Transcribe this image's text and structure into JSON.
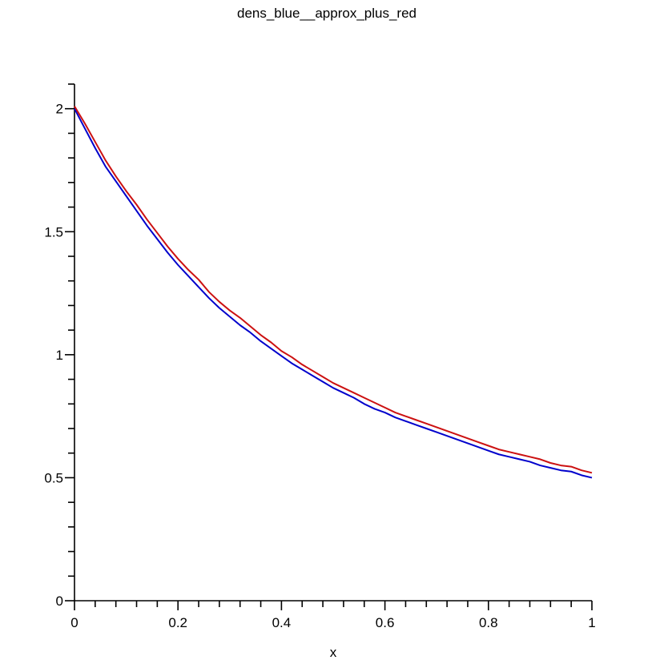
{
  "chart_data": {
    "type": "line",
    "title": "dens_blue__approx_plus_red",
    "xlabel": "x",
    "ylabel": "",
    "xlim": [
      0,
      1
    ],
    "ylim": [
      0,
      2.1
    ],
    "grid": false,
    "legend": "none",
    "x_ticks": [
      {
        "value": 0,
        "label": "0"
      },
      {
        "value": 0.2,
        "label": "0.2"
      },
      {
        "value": 0.4,
        "label": "0.4"
      },
      {
        "value": 0.6,
        "label": "0.6"
      },
      {
        "value": 0.8,
        "label": "0.8"
      },
      {
        "value": 1,
        "label": "1"
      }
    ],
    "x_minor_step": 0.04,
    "y_ticks": [
      {
        "value": 0,
        "label": "0"
      },
      {
        "value": 0.5,
        "label": "0.5"
      },
      {
        "value": 1,
        "label": "1"
      },
      {
        "value": 1.5,
        "label": "1.5"
      },
      {
        "value": 2,
        "label": "2"
      }
    ],
    "y_minor_step": 0.1,
    "x": [
      0,
      0.02,
      0.04,
      0.06,
      0.08,
      0.1,
      0.12,
      0.14,
      0.16,
      0.18,
      0.2,
      0.22,
      0.24,
      0.26,
      0.28,
      0.3,
      0.32,
      0.34,
      0.36,
      0.38,
      0.4,
      0.42,
      0.44,
      0.46,
      0.48,
      0.5,
      0.52,
      0.54,
      0.56,
      0.58,
      0.6,
      0.62,
      0.64,
      0.66,
      0.68,
      0.7,
      0.72,
      0.74,
      0.76,
      0.78,
      0.8,
      0.82,
      0.84,
      0.86,
      0.88,
      0.9,
      0.92,
      0.94,
      0.96,
      0.98,
      1
    ],
    "series": [
      {
        "color": "#0000cc",
        "values": [
          2.0,
          1.92,
          1.84,
          1.765,
          1.705,
          1.645,
          1.585,
          1.525,
          1.47,
          1.415,
          1.365,
          1.32,
          1.275,
          1.23,
          1.19,
          1.155,
          1.12,
          1.09,
          1.055,
          1.025,
          0.995,
          0.965,
          0.94,
          0.915,
          0.89,
          0.865,
          0.845,
          0.825,
          0.8,
          0.78,
          0.765,
          0.745,
          0.73,
          0.715,
          0.7,
          0.685,
          0.67,
          0.655,
          0.64,
          0.625,
          0.61,
          0.595,
          0.585,
          0.575,
          0.565,
          0.55,
          0.54,
          0.53,
          0.525,
          0.51,
          0.5
        ]
      },
      {
        "color": "#cc1111",
        "values": [
          2.01,
          1.94,
          1.865,
          1.79,
          1.725,
          1.665,
          1.61,
          1.55,
          1.495,
          1.44,
          1.39,
          1.345,
          1.305,
          1.255,
          1.215,
          1.18,
          1.15,
          1.115,
          1.08,
          1.05,
          1.015,
          0.99,
          0.96,
          0.935,
          0.91,
          0.885,
          0.865,
          0.845,
          0.825,
          0.805,
          0.785,
          0.765,
          0.75,
          0.735,
          0.72,
          0.705,
          0.69,
          0.675,
          0.66,
          0.645,
          0.63,
          0.615,
          0.605,
          0.595,
          0.585,
          0.575,
          0.56,
          0.55,
          0.545,
          0.53,
          0.52
        ]
      }
    ]
  }
}
